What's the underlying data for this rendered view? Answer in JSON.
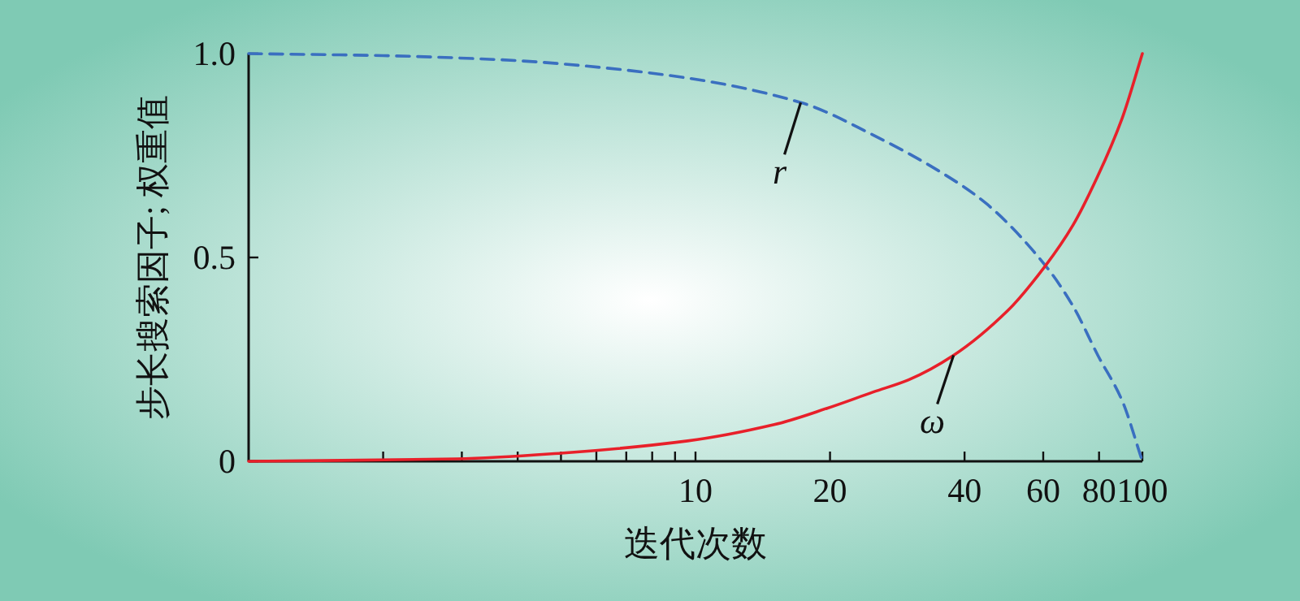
{
  "chart_data": {
    "type": "line",
    "xlabel": "迭代次数",
    "ylabel": "步长搜索因子; 权重值",
    "log": "x",
    "xlim": [
      1,
      100
    ],
    "ylim": [
      0,
      1
    ],
    "xticks": [
      {
        "value": 2,
        "label": null
      },
      {
        "value": 3,
        "label": null
      },
      {
        "value": 4,
        "label": null
      },
      {
        "value": 5,
        "label": null
      },
      {
        "value": 6,
        "label": null
      },
      {
        "value": 7,
        "label": null
      },
      {
        "value": 8,
        "label": null
      },
      {
        "value": 9,
        "label": null
      },
      10,
      20,
      40,
      60,
      80,
      100
    ],
    "yticks": [
      0,
      0.5,
      {
        "value": 1,
        "label": "1.0"
      }
    ],
    "grid": false,
    "series": [
      {
        "name": "r",
        "color": "#3a6fc0",
        "line_style": "dashed",
        "x": [
          1,
          2,
          3.65,
          5,
          9.6,
          17.2,
          25,
          35.3,
          45,
          60.7,
          70,
          79.5,
          90,
          100
        ],
        "values": [
          1,
          0.995,
          0.985,
          0.975,
          0.94,
          0.88,
          0.8,
          0.71,
          0.63,
          0.48,
          0.38,
          0.26,
          0.15,
          0
        ]
      },
      {
        "name": "ω",
        "color": "#e8202a",
        "line_style": "solid",
        "x": [
          1,
          2.93,
          5,
          9.6,
          15,
          19.7,
          25,
          30,
          37.8,
          50,
          60.7,
          70,
          79.5,
          90,
          100
        ],
        "values": [
          0,
          0.006,
          0.02,
          0.05,
          0.09,
          0.13,
          0.17,
          0.2,
          0.26,
          0.37,
          0.48,
          0.58,
          0.7,
          0.84,
          1
        ]
      }
    ]
  }
}
